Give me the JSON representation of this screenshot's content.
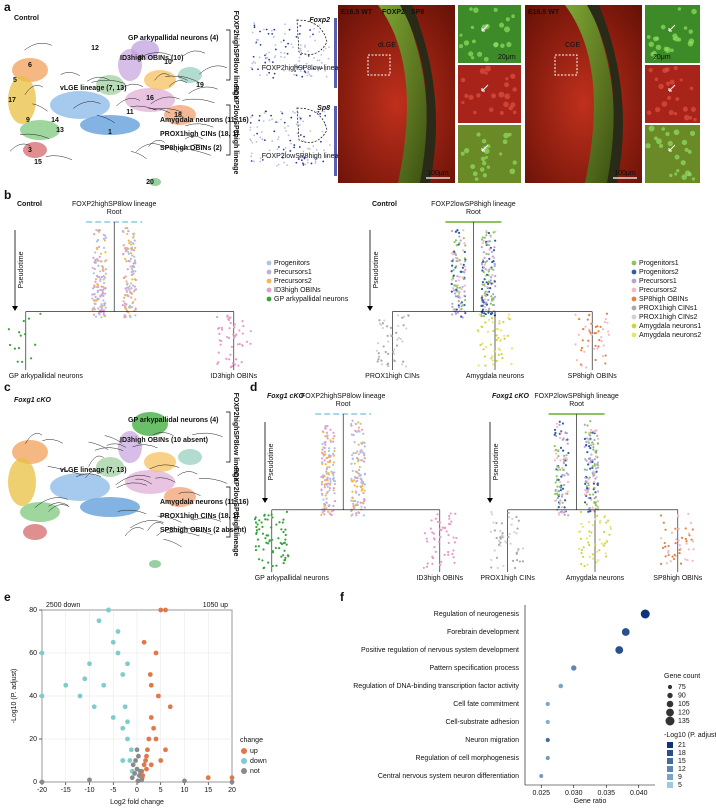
{
  "panels": {
    "a": {
      "label": "a",
      "condition": "Control",
      "umap_labels": [
        "vLGE lineage (7, 13)",
        "GP arkypallidal neurons (4)",
        "ID3high OBINs (10)",
        "Amygdala neurons (11, 16)",
        "PROX1high CINs (18, 1)",
        "SP8high OBINs (2)"
      ],
      "lineages": [
        "FOXP2highSP8low lineage",
        "FOXP2lowSP8high lineage"
      ],
      "clusters": [
        "12",
        "6",
        "5",
        "17",
        "9",
        "13",
        "3",
        "15",
        "14",
        "8",
        "10",
        "16",
        "18",
        "11",
        "1",
        "19",
        "20"
      ],
      "features": [
        {
          "gene": "Foxp2",
          "lineage": "FOXP2highSP8low lineage"
        },
        {
          "gene": "Sp8",
          "lineage": "FOXP2lowSP8high lineage"
        }
      ],
      "images": [
        {
          "stage": "E16.5 WT",
          "region": "dLGE",
          "scale": "100μm",
          "inset_scale": "20μm"
        },
        {
          "stage": "E16.5 WT",
          "region": "CGE",
          "scale": "100μm",
          "inset_scale": "20μm"
        }
      ],
      "stains": [
        "FOXP2",
        "SP8"
      ]
    },
    "b": {
      "label": "b",
      "trees": [
        {
          "condition": "Control",
          "title": "FOXP2highSP8low lineage",
          "root": "Root",
          "axis": "Pseudotime",
          "leaves": [
            "GP arkypallidal neurons",
            "ID3high OBINs"
          ],
          "legend": [
            {
              "name": "Progenitors",
              "color": "#a8c6e6"
            },
            {
              "name": "Precursors1",
              "color": "#b8b2de"
            },
            {
              "name": "Precursors2",
              "color": "#f3b84e"
            },
            {
              "name": "ID3high OBINs",
              "color": "#e59ac9"
            },
            {
              "name": "GP arkypallidal neurons",
              "color": "#35a43a"
            }
          ]
        },
        {
          "condition": "Control",
          "title": "FOXP2lowSP8high lineage",
          "root": "Root",
          "axis": "Pseudotime",
          "leaves": [
            "PROX1high CINs",
            "Amygdala neurons",
            "SP8high OBINs"
          ],
          "legend": [
            {
              "name": "Progenitors1",
              "color": "#8cc560"
            },
            {
              "name": "Progenitors2",
              "color": "#2d5ea6"
            },
            {
              "name": "Precursors1",
              "color": "#b3a3d8"
            },
            {
              "name": "Precursors2",
              "color": "#f2b9c9"
            },
            {
              "name": "SP8high OBINs",
              "color": "#e8803a"
            },
            {
              "name": "PROX1high CINs1",
              "color": "#a9a9a9"
            },
            {
              "name": "PROX1high CINs2",
              "color": "#d2d2d2"
            },
            {
              "name": "Amygdala neurons1",
              "color": "#d3d33c"
            },
            {
              "name": "Amygdala neurons2",
              "color": "#ebe46a"
            }
          ]
        }
      ]
    },
    "c": {
      "label": "c",
      "condition": "Foxg1 cKO",
      "umap_labels": [
        "vLGE lineage (7, 13)",
        "GP arkypallidal neurons (4)",
        "ID3high OBINs (10 absent)",
        "Amygdala neurons (11, 16)",
        "PROX1high CINs (18, 1)",
        "SP8high OBINs (2 absent)"
      ],
      "lineages": [
        "FOXP2highSP8low lineage",
        "FOXP2lowSP8high lineage"
      ]
    },
    "d": {
      "label": "d",
      "trees": [
        {
          "condition": "Foxg1 cKO",
          "title": "FOXP2highSP8low lineage",
          "root": "Root",
          "axis": "Pseudotime",
          "leaves": [
            "GP arkypallidal neurons",
            "ID3high OBINs"
          ]
        },
        {
          "condition": "Foxg1 cKO",
          "title": "FOXP2lowSP8high lineage",
          "root": "Root",
          "axis": "Pseudotime",
          "leaves": [
            "PROX1high CINs",
            "Amygdala neurons",
            "SP8high OBINs"
          ]
        }
      ]
    },
    "e": {
      "label": "e"
    },
    "f": {
      "label": "f"
    }
  },
  "chart_data": [
    {
      "type": "scatter",
      "xlabel": "Log2 fold change",
      "ylabel": "-Log10 (P. adjust)",
      "annotations": [
        "2500 down",
        "1050 up"
      ],
      "legend_title": "change",
      "xlim": [
        -20,
        20
      ],
      "xticks": [
        -20,
        -15,
        -10,
        -5,
        0,
        5,
        10,
        15,
        20
      ],
      "ylim": [
        0,
        80
      ],
      "yticks": [
        0,
        20,
        40,
        60,
        80
      ],
      "grid": true,
      "series": [
        {
          "name": "up",
          "color": "#e0784a",
          "x": [
            1,
            1.5,
            2,
            2.5,
            3,
            3,
            4,
            5,
            6,
            1.2,
            2.2,
            3.5,
            4.5,
            1.8,
            2.8,
            1.1,
            7,
            15,
            20,
            5,
            3,
            2,
            4,
            6,
            1.5
          ],
          "values": [
            5,
            8,
            12,
            20,
            30,
            45,
            60,
            80,
            80,
            3,
            15,
            25,
            40,
            10,
            50,
            2,
            35,
            2,
            2,
            10,
            8,
            6,
            20,
            15,
            65
          ]
        },
        {
          "name": "down",
          "color": "#7fcccd",
          "x": [
            -1,
            -1.5,
            -2,
            -2.5,
            -3,
            -4,
            -5,
            -6,
            -8,
            -10,
            -12,
            -15,
            -20,
            -3,
            -5,
            -7,
            -1.2,
            -2,
            -4,
            -9,
            -11,
            -20,
            -6,
            -3,
            -2
          ],
          "values": [
            5,
            10,
            20,
            35,
            50,
            60,
            65,
            80,
            75,
            55,
            40,
            45,
            40,
            25,
            30,
            45,
            15,
            55,
            70,
            35,
            48,
            60,
            80,
            10,
            28
          ]
        },
        {
          "name": "not",
          "color": "#8a8a8a",
          "x": [
            -1,
            -0.5,
            0,
            0.5,
            1,
            -0.8,
            0.3,
            0.7,
            -0.3,
            -20,
            20,
            10,
            -10,
            0,
            0.2
          ],
          "values": [
            2,
            4,
            6,
            3,
            1,
            8,
            12,
            5,
            10,
            0,
            0,
            0.5,
            1,
            15,
            0.5
          ]
        }
      ]
    },
    {
      "type": "dot",
      "xlabel": "Gene ratio",
      "categories": [
        "Regulation of neurogenesis",
        "Forebrain development",
        "Positive regulation of nervous system development",
        "Pattern specification process",
        "Regulation of DNA-binding transcription factor activity",
        "Cell fate commitment",
        "Cell-substrate adhesion",
        "Neuron migration",
        "Regulation of cell morphogenesis",
        "Central nervous system neuron differentiation"
      ],
      "values": [
        0.041,
        0.038,
        0.037,
        0.03,
        0.028,
        0.026,
        0.026,
        0.026,
        0.026,
        0.025
      ],
      "sizes": [
        135,
        120,
        120,
        90,
        80,
        75,
        75,
        75,
        75,
        72
      ],
      "pvalues": [
        21,
        18,
        18,
        12,
        9,
        9,
        8,
        15,
        10,
        10
      ],
      "xlim": [
        0.0225,
        0.0425
      ],
      "xticks": [
        0.025,
        {
          "value": 0.03,
          "label": "0.030"
        },
        0.035,
        {
          "value": 0.04,
          "label": "0.040"
        }
      ],
      "size_legend": {
        "title": "Gene count",
        "values": [
          75,
          90,
          105,
          120,
          135
        ]
      },
      "color_legend": {
        "title": "-Log10 (P. adjust)",
        "values": [
          21,
          18,
          15,
          12,
          9,
          5
        ]
      }
    }
  ]
}
